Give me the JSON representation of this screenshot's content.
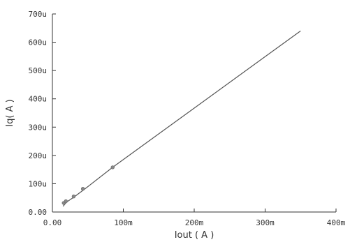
{
  "chart_data": {
    "type": "line",
    "title": "",
    "xlabel": "Iout ( A )",
    "ylabel": "Iq( A )",
    "xlim": [
      0,
      0.4
    ],
    "ylim": [
      0,
      0.0007
    ],
    "x_ticks": [
      {
        "value": 0,
        "label": "0.00"
      },
      {
        "value": 0.1,
        "label": "100m"
      },
      {
        "value": 0.2,
        "label": "200m"
      },
      {
        "value": 0.3,
        "label": "300m"
      },
      {
        "value": 0.4,
        "label": "400m"
      }
    ],
    "y_ticks": [
      {
        "value": 0,
        "label": "0.00"
      },
      {
        "value": 0.0001,
        "label": "100u"
      },
      {
        "value": 0.0002,
        "label": "200u"
      },
      {
        "value": 0.0003,
        "label": "300u"
      },
      {
        "value": 0.0004,
        "label": "400u"
      },
      {
        "value": 0.0005,
        "label": "500u"
      },
      {
        "value": 0.0006,
        "label": "600u"
      },
      {
        "value": 0.0007,
        "label": "700u"
      }
    ],
    "grid": false,
    "line_color": "#555555",
    "marker_color": "#888888",
    "series": [
      {
        "x": [
          0.015,
          0.02,
          0.03,
          0.045,
          0.085,
          0.35
        ],
        "y": [
          2e-05,
          3.5e-05,
          5.2e-05,
          8e-05,
          0.000158,
          0.00064
        ]
      }
    ],
    "markers": {
      "x": [
        0.016,
        0.019,
        0.03,
        0.043,
        0.085
      ],
      "y": [
        3.2e-05,
        3.8e-05,
        5.5e-05,
        8.2e-05,
        0.000158
      ]
    }
  }
}
